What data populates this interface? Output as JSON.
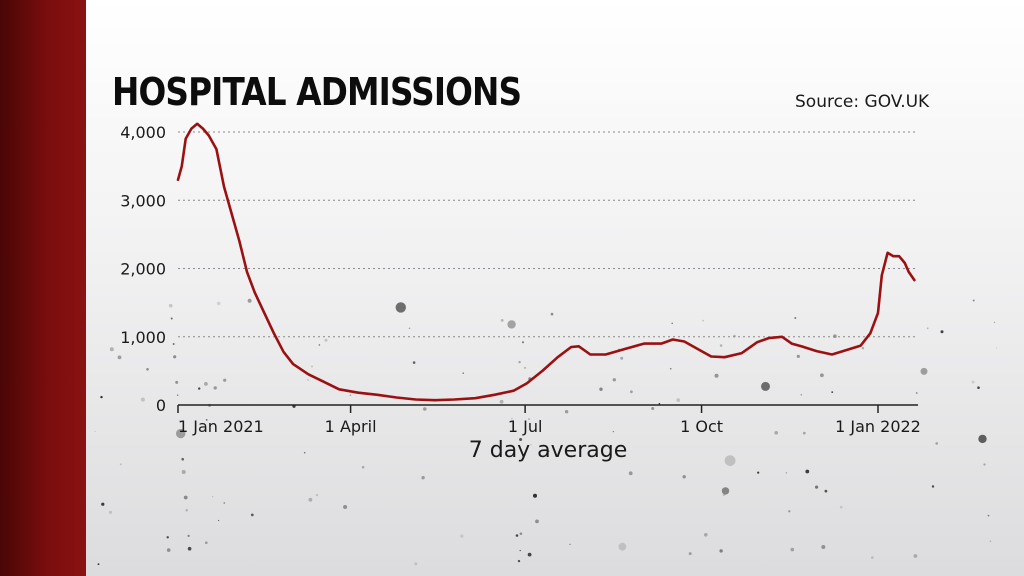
{
  "title": "HOSPITAL ADMISSIONS",
  "source": "Source: GOV.UK",
  "colors": {
    "line": "#9b1111",
    "band": "#7a0d0d",
    "grid": "#8a8a8a",
    "text": "#1a1a1a"
  },
  "chart_data": {
    "type": "line",
    "title": "HOSPITAL ADMISSIONS",
    "xlabel": "7 day average",
    "ylabel": "",
    "ylim": [
      0,
      4000
    ],
    "yticks": [
      0,
      1000,
      2000,
      3000,
      4000
    ],
    "ytick_labels": [
      "0",
      "1,000",
      "2,000",
      "3,000",
      "4,000"
    ],
    "xlim": [
      "2021-01-01",
      "2022-01-01"
    ],
    "xticks": [
      "2021-01-01",
      "2021-04-01",
      "2021-07-01",
      "2021-10-01",
      "2022-01-01"
    ],
    "xtick_labels": [
      "1 Jan 2021",
      "1 April",
      "1 Jul",
      "1 Oct",
      "1 Jan 2022"
    ],
    "grid": "horizontal dotted",
    "series": [
      {
        "points": [
          [
            "2021-01-01",
            3300
          ],
          [
            "2021-01-03",
            3500
          ],
          [
            "2021-01-05",
            3900
          ],
          [
            "2021-01-08",
            4050
          ],
          [
            "2021-01-11",
            4120
          ],
          [
            "2021-01-14",
            4050
          ],
          [
            "2021-01-17",
            3950
          ],
          [
            "2021-01-21",
            3750
          ],
          [
            "2021-01-25",
            3200
          ],
          [
            "2021-01-29",
            2800
          ],
          [
            "2021-02-02",
            2400
          ],
          [
            "2021-02-06",
            1950
          ],
          [
            "2021-02-10",
            1650
          ],
          [
            "2021-02-15",
            1350
          ],
          [
            "2021-02-20",
            1050
          ],
          [
            "2021-02-25",
            780
          ],
          [
            "2021-03-02",
            600
          ],
          [
            "2021-03-10",
            450
          ],
          [
            "2021-03-18",
            340
          ],
          [
            "2021-03-26",
            230
          ],
          [
            "2021-04-05",
            180
          ],
          [
            "2021-04-15",
            150
          ],
          [
            "2021-04-25",
            110
          ],
          [
            "2021-05-05",
            80
          ],
          [
            "2021-05-15",
            70
          ],
          [
            "2021-05-25",
            80
          ],
          [
            "2021-06-05",
            100
          ],
          [
            "2021-06-15",
            150
          ],
          [
            "2021-06-25",
            210
          ],
          [
            "2021-07-02",
            320
          ],
          [
            "2021-07-10",
            500
          ],
          [
            "2021-07-18",
            700
          ],
          [
            "2021-07-25",
            850
          ],
          [
            "2021-07-29",
            860
          ],
          [
            "2021-08-04",
            740
          ],
          [
            "2021-08-12",
            740
          ],
          [
            "2021-08-22",
            820
          ],
          [
            "2021-09-01",
            900
          ],
          [
            "2021-09-10",
            900
          ],
          [
            "2021-09-16",
            960
          ],
          [
            "2021-09-22",
            930
          ],
          [
            "2021-09-29",
            820
          ],
          [
            "2021-10-06",
            710
          ],
          [
            "2021-10-13",
            700
          ],
          [
            "2021-10-22",
            760
          ],
          [
            "2021-10-30",
            920
          ],
          [
            "2021-11-05",
            980
          ],
          [
            "2021-11-12",
            1000
          ],
          [
            "2021-11-17",
            900
          ],
          [
            "2021-11-22",
            860
          ],
          [
            "2021-11-30",
            790
          ],
          [
            "2021-12-08",
            740
          ],
          [
            "2021-12-15",
            800
          ],
          [
            "2021-12-23",
            870
          ],
          [
            "2021-12-28",
            1050
          ],
          [
            "2022-01-01",
            1350
          ],
          [
            "2022-01-03",
            1900
          ],
          [
            "2022-01-06",
            2230
          ],
          [
            "2022-01-09",
            2180
          ],
          [
            "2022-01-12",
            2180
          ],
          [
            "2022-01-15",
            2080
          ],
          [
            "2022-01-17",
            1950
          ],
          [
            "2022-01-20",
            1830
          ]
        ]
      }
    ]
  }
}
